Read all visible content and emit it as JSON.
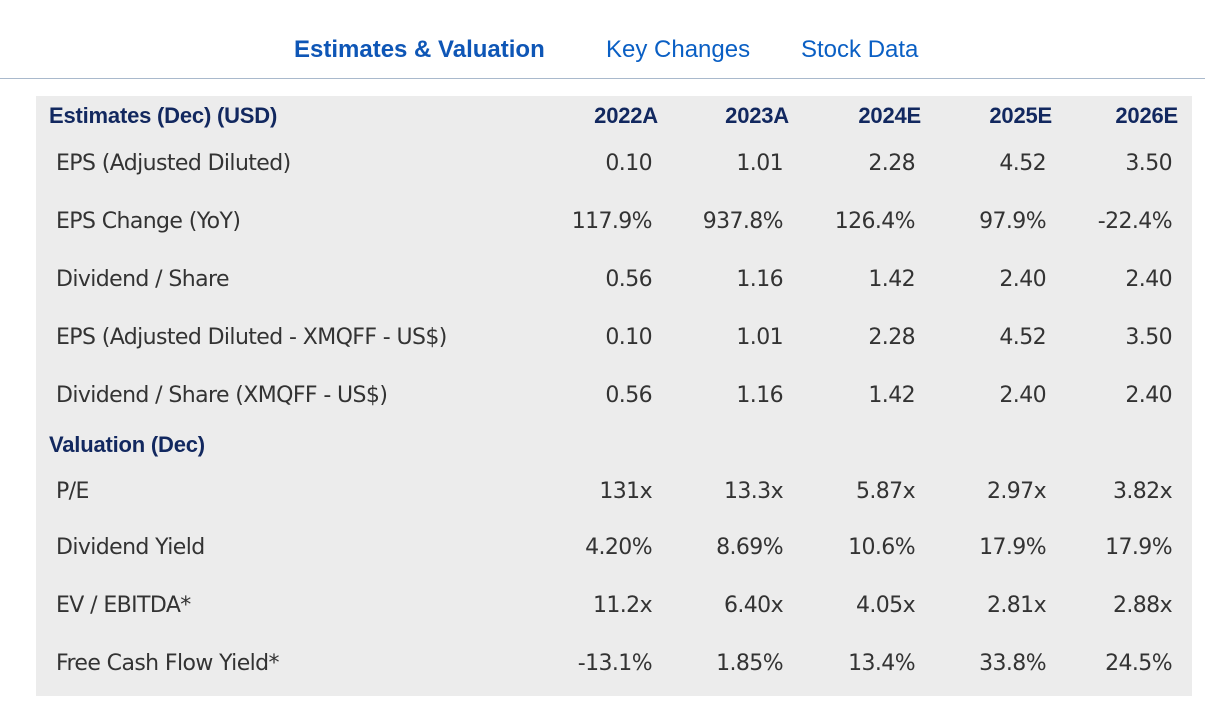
{
  "tabs": [
    {
      "label": "Estimates & Valuation",
      "active": true
    },
    {
      "label": "Key Changes",
      "active": false
    },
    {
      "label": "Stock Data",
      "active": false
    }
  ],
  "colors": {
    "tab_text": "#0a5fc4",
    "header_text": "#12285f",
    "panel_bg": "#ececec",
    "divider": "#a9b9cc"
  },
  "estimates": {
    "header": "Estimates (Dec) (USD)",
    "years": [
      "2022A",
      "2023A",
      "2024E",
      "2025E",
      "2026E"
    ],
    "rows": [
      {
        "label": "EPS (Adjusted Diluted)",
        "values": [
          "0.10",
          "1.01",
          "2.28",
          "4.52",
          "3.50"
        ]
      },
      {
        "label": "EPS Change (YoY)",
        "values": [
          "117.9%",
          "937.8%",
          "126.4%",
          "97.9%",
          "-22.4%"
        ]
      },
      {
        "label": "Dividend / Share",
        "values": [
          "0.56",
          "1.16",
          "1.42",
          "2.40",
          "2.40"
        ]
      },
      {
        "label": "EPS (Adjusted Diluted - XMQFF - US$)",
        "values": [
          "0.10",
          "1.01",
          "2.28",
          "4.52",
          "3.50"
        ]
      },
      {
        "label": "Dividend / Share (XMQFF - US$)",
        "values": [
          "0.56",
          "1.16",
          "1.42",
          "2.40",
          "2.40"
        ]
      }
    ]
  },
  "valuation": {
    "header": "Valuation (Dec)",
    "rows": [
      {
        "label": "P/E",
        "values": [
          "131x",
          "13.3x",
          "5.87x",
          "2.97x",
          "3.82x"
        ]
      },
      {
        "label": "Dividend Yield",
        "values": [
          "4.20%",
          "8.69%",
          "10.6%",
          "17.9%",
          "17.9%"
        ]
      },
      {
        "label": "EV / EBITDA*",
        "values": [
          "11.2x",
          "6.40x",
          "4.05x",
          "2.81x",
          "2.88x"
        ]
      },
      {
        "label": "Free Cash Flow Yield*",
        "values": [
          "-13.1%",
          "1.85%",
          "13.4%",
          "33.8%",
          "24.5%"
        ]
      }
    ]
  }
}
